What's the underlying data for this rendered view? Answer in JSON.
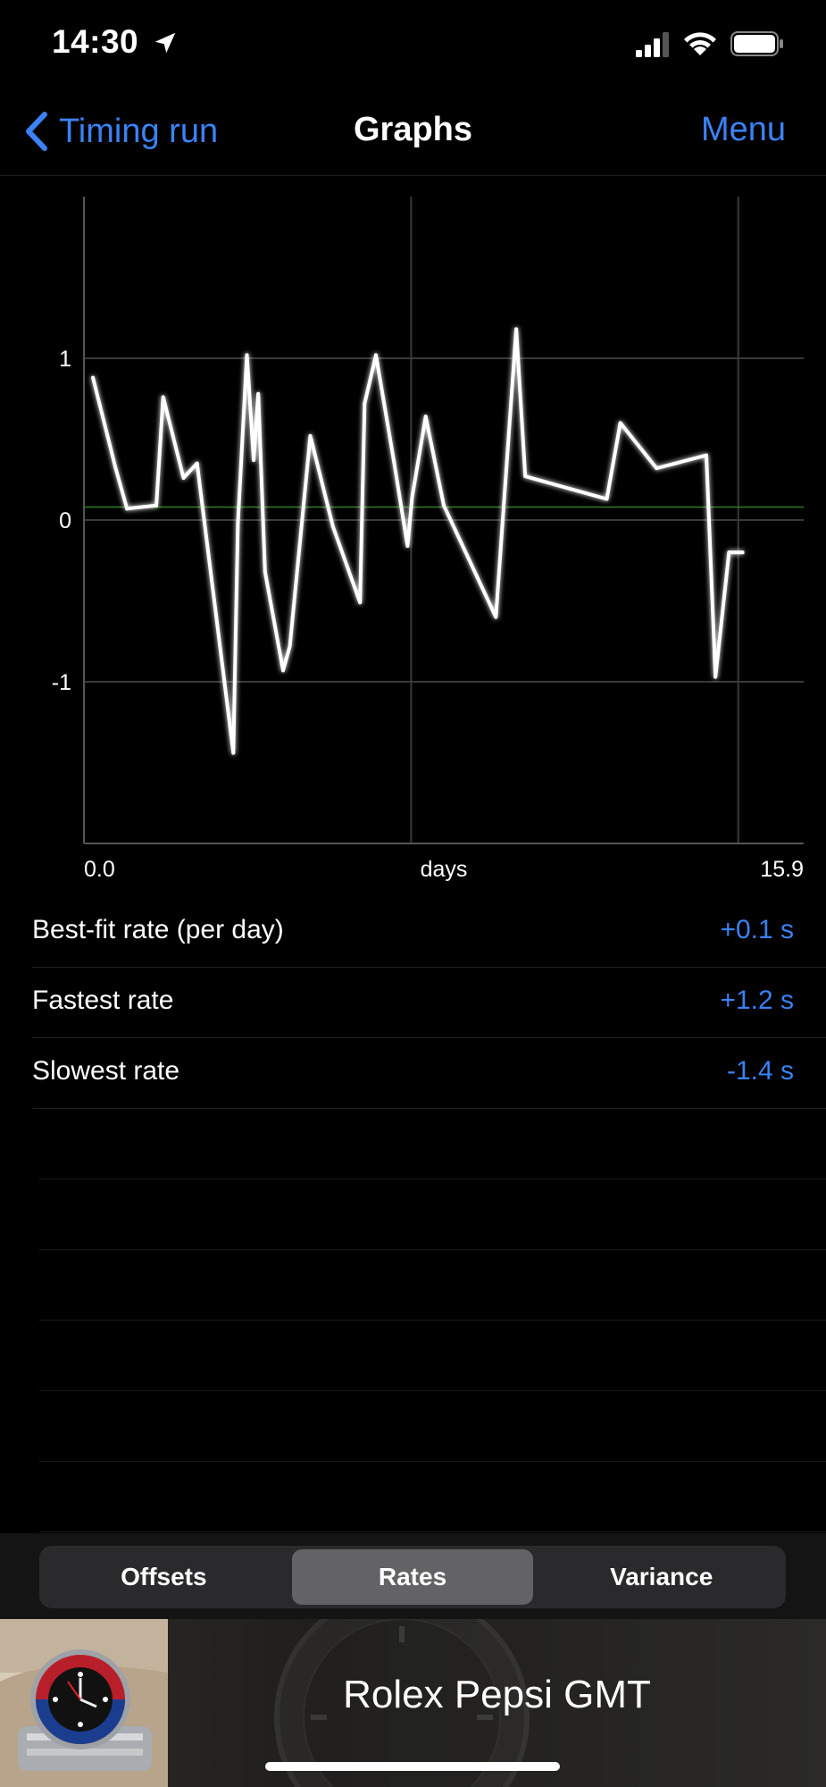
{
  "status_bar": {
    "time": "14:30"
  },
  "nav": {
    "back_label": "Timing run",
    "title": "Graphs",
    "menu_label": "Menu"
  },
  "chart_data": {
    "type": "line",
    "x_start_label": "0.0",
    "x_end_label": "15.9",
    "xlabel": "days",
    "xlim": [
      0,
      15.9
    ],
    "ylim": [
      -2,
      2
    ],
    "y_ticks": [
      1,
      0,
      -1
    ],
    "y_tick_labels": [
      "1",
      "0",
      "-1"
    ],
    "best_fit": 0.08,
    "line_color": "#ffffff",
    "best_fit_color": "#2f7d1f",
    "grid": true,
    "series": [
      {
        "x": [
          0.2,
          0.7,
          0.95,
          1.6,
          1.75,
          2.2,
          2.5,
          3.3,
          3.4,
          3.6,
          3.75,
          3.85,
          4.0,
          4.4,
          4.55,
          5.0,
          5.5,
          6.1,
          6.2,
          6.45,
          6.85,
          7.15,
          7.25,
          7.55,
          7.95,
          9.1,
          9.55,
          9.75,
          11.55,
          11.85,
          12.65,
          13.75,
          13.95,
          14.25,
          14.55
        ],
        "y": [
          0.88,
          0.32,
          0.07,
          0.09,
          0.76,
          0.26,
          0.35,
          -1.44,
          -0.02,
          1.02,
          0.37,
          0.78,
          -0.32,
          -0.93,
          -0.78,
          0.52,
          -0.04,
          -0.51,
          0.72,
          1.02,
          0.36,
          -0.16,
          0.14,
          0.64,
          0.09,
          -0.6,
          1.18,
          0.27,
          0.13,
          0.6,
          0.32,
          0.4,
          -0.97,
          -0.2,
          -0.2
        ]
      }
    ]
  },
  "stats": [
    {
      "label": "Best-fit rate (per day)",
      "value": "+0.1 s"
    },
    {
      "label": "Fastest rate",
      "value": "+1.2 s"
    },
    {
      "label": "Slowest rate",
      "value": "-1.4 s"
    }
  ],
  "tabs": [
    {
      "label": "Offsets",
      "selected": false
    },
    {
      "label": "Rates",
      "selected": true
    },
    {
      "label": "Variance",
      "selected": false
    }
  ],
  "watch": {
    "name": "Rolex Pepsi GMT"
  },
  "colors": {
    "accent": "#3a82f6",
    "background": "#000000"
  }
}
